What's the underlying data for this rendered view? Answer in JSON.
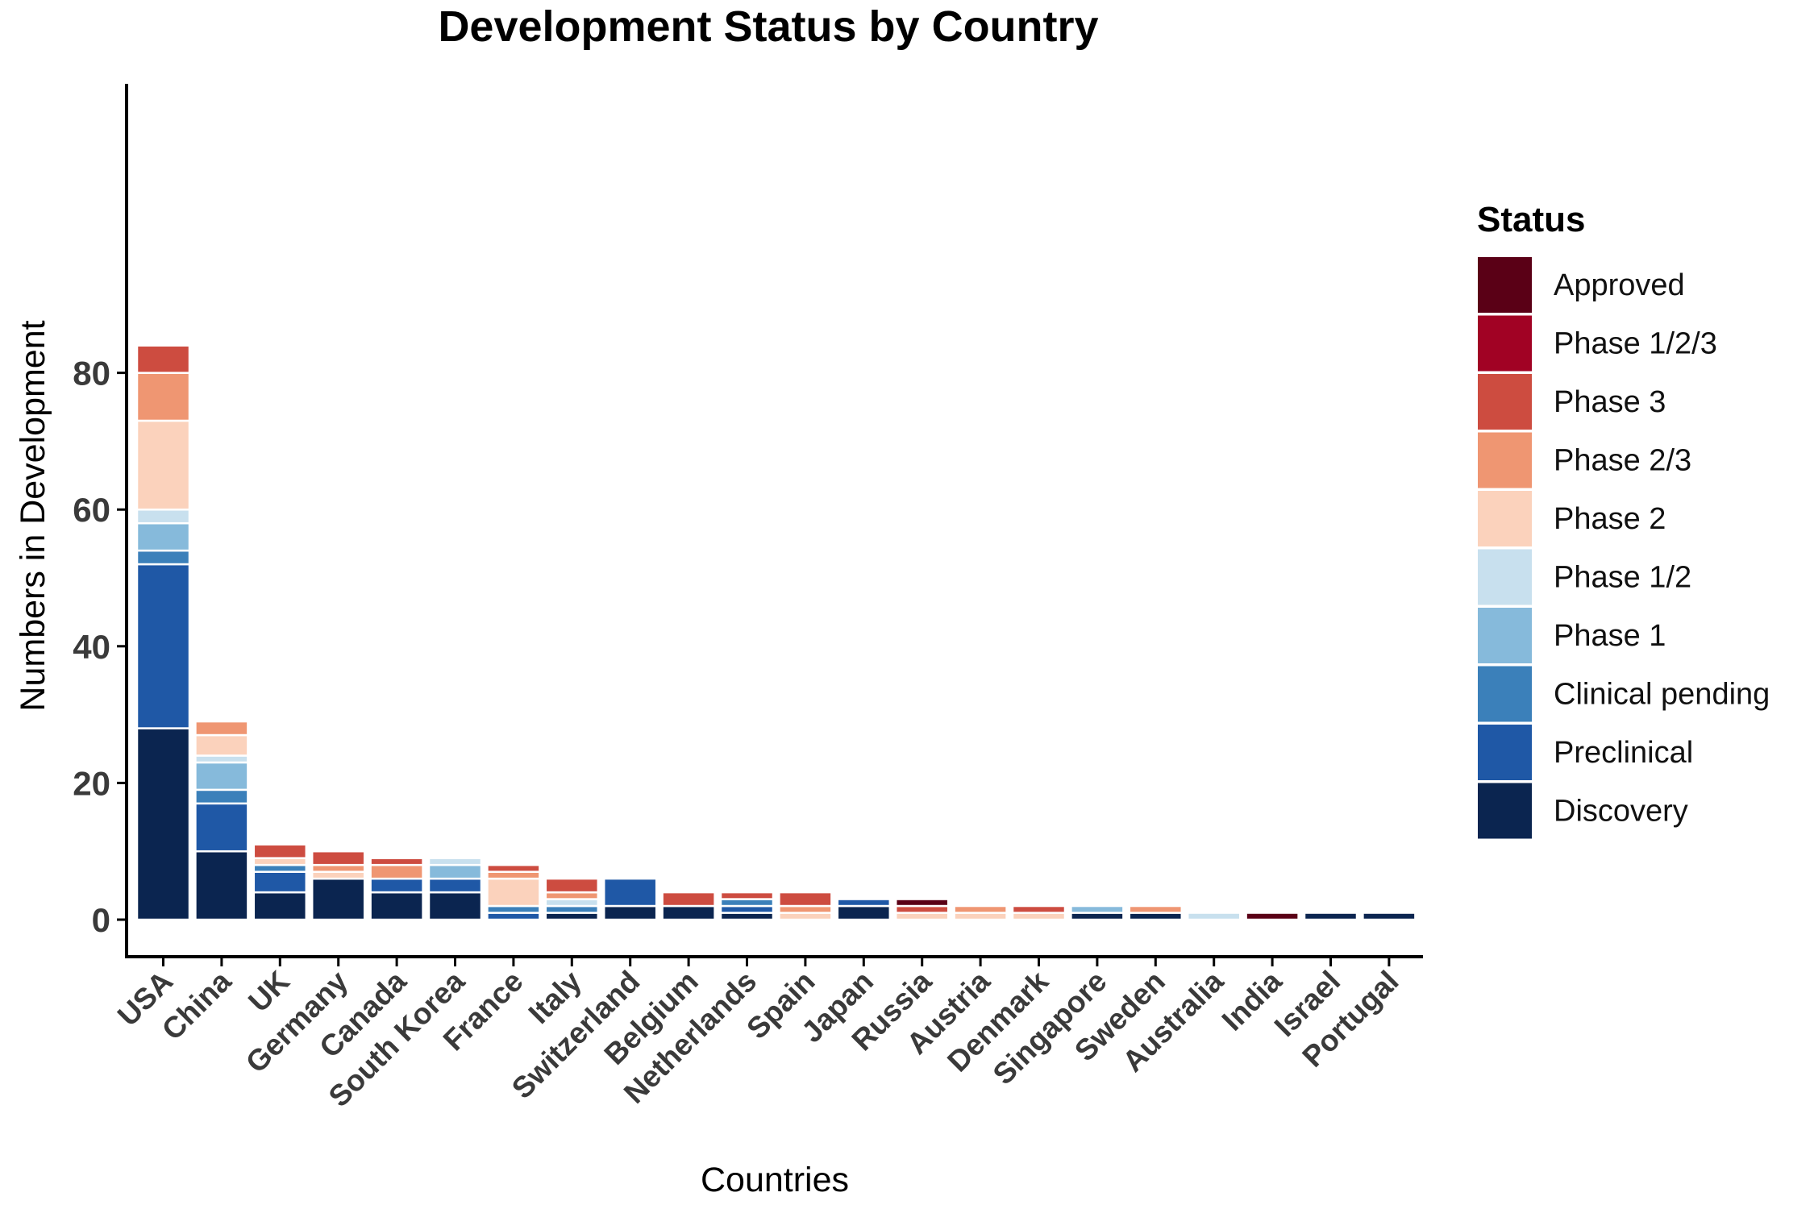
{
  "chart_data": {
    "type": "bar",
    "stacked": true,
    "title": "Development Status by Country",
    "xlabel": "Countries",
    "ylabel": "Numbers in Development",
    "ylim": [
      0,
      84
    ],
    "yticks": [
      0,
      20,
      40,
      60,
      80
    ],
    "grid": false,
    "legend": {
      "title": "Status",
      "position": "right"
    },
    "categories": [
      "USA",
      "China",
      "UK",
      "Germany",
      "Canada",
      "South Korea",
      "France",
      "Italy",
      "Switzerland",
      "Belgium",
      "Netherlands",
      "Spain",
      "Japan",
      "Russia",
      "Austria",
      "Denmark",
      "Singapore",
      "Sweden",
      "Australia",
      "India",
      "Israel",
      "Portugal"
    ],
    "series": [
      {
        "name": "Discovery",
        "color": "#0b2550",
        "values": [
          28,
          10,
          4,
          6,
          4,
          4,
          0,
          1,
          2,
          2,
          1,
          0,
          2,
          0,
          0,
          0,
          1,
          1,
          0,
          0,
          1,
          1
        ]
      },
      {
        "name": "Preclinical",
        "color": "#1f58a6",
        "values": [
          24,
          7,
          3,
          0,
          2,
          2,
          1,
          0,
          4,
          0,
          1,
          0,
          1,
          0,
          0,
          0,
          0,
          0,
          0,
          0,
          0,
          0
        ]
      },
      {
        "name": "Clinical pending",
        "color": "#3b80ba",
        "values": [
          2,
          2,
          1,
          0,
          0,
          0,
          1,
          1,
          0,
          0,
          1,
          0,
          0,
          0,
          0,
          0,
          0,
          0,
          0,
          0,
          0,
          0
        ]
      },
      {
        "name": "Phase 1",
        "color": "#86badb",
        "values": [
          4,
          4,
          0,
          0,
          0,
          2,
          0,
          0,
          0,
          0,
          0,
          0,
          0,
          0,
          0,
          0,
          1,
          0,
          0,
          0,
          0,
          0
        ]
      },
      {
        "name": "Phase 1/2",
        "color": "#c8e0ee",
        "values": [
          2,
          1,
          0,
          0,
          0,
          1,
          0,
          1,
          0,
          0,
          0,
          0,
          0,
          0,
          0,
          0,
          0,
          0,
          1,
          0,
          0,
          0
        ]
      },
      {
        "name": "Phase 2",
        "color": "#fbd2bc",
        "values": [
          13,
          3,
          1,
          1,
          0,
          0,
          4,
          0,
          0,
          0,
          0,
          1,
          0,
          1,
          1,
          1,
          0,
          0,
          0,
          0,
          0,
          0
        ]
      },
      {
        "name": "Phase 2/3",
        "color": "#ef9672",
        "values": [
          7,
          2,
          0,
          1,
          2,
          0,
          1,
          1,
          0,
          0,
          0,
          1,
          0,
          0,
          1,
          0,
          0,
          1,
          0,
          0,
          0,
          0
        ]
      },
      {
        "name": "Phase 3",
        "color": "#cd4c40",
        "values": [
          4,
          0,
          2,
          2,
          1,
          0,
          1,
          2,
          0,
          2,
          1,
          2,
          0,
          1,
          0,
          1,
          0,
          0,
          0,
          0,
          0,
          0
        ]
      },
      {
        "name": "Phase 1/2/3",
        "color": "#a10224",
        "values": [
          0,
          0,
          0,
          0,
          0,
          0,
          0,
          0,
          0,
          0,
          0,
          0,
          0,
          0,
          0,
          0,
          0,
          0,
          0,
          0,
          0,
          0
        ]
      },
      {
        "name": "Approved",
        "color": "#5a0016",
        "values": [
          0,
          0,
          0,
          0,
          0,
          0,
          0,
          0,
          0,
          0,
          0,
          0,
          0,
          1,
          0,
          0,
          0,
          0,
          0,
          1,
          0,
          0
        ]
      }
    ]
  }
}
